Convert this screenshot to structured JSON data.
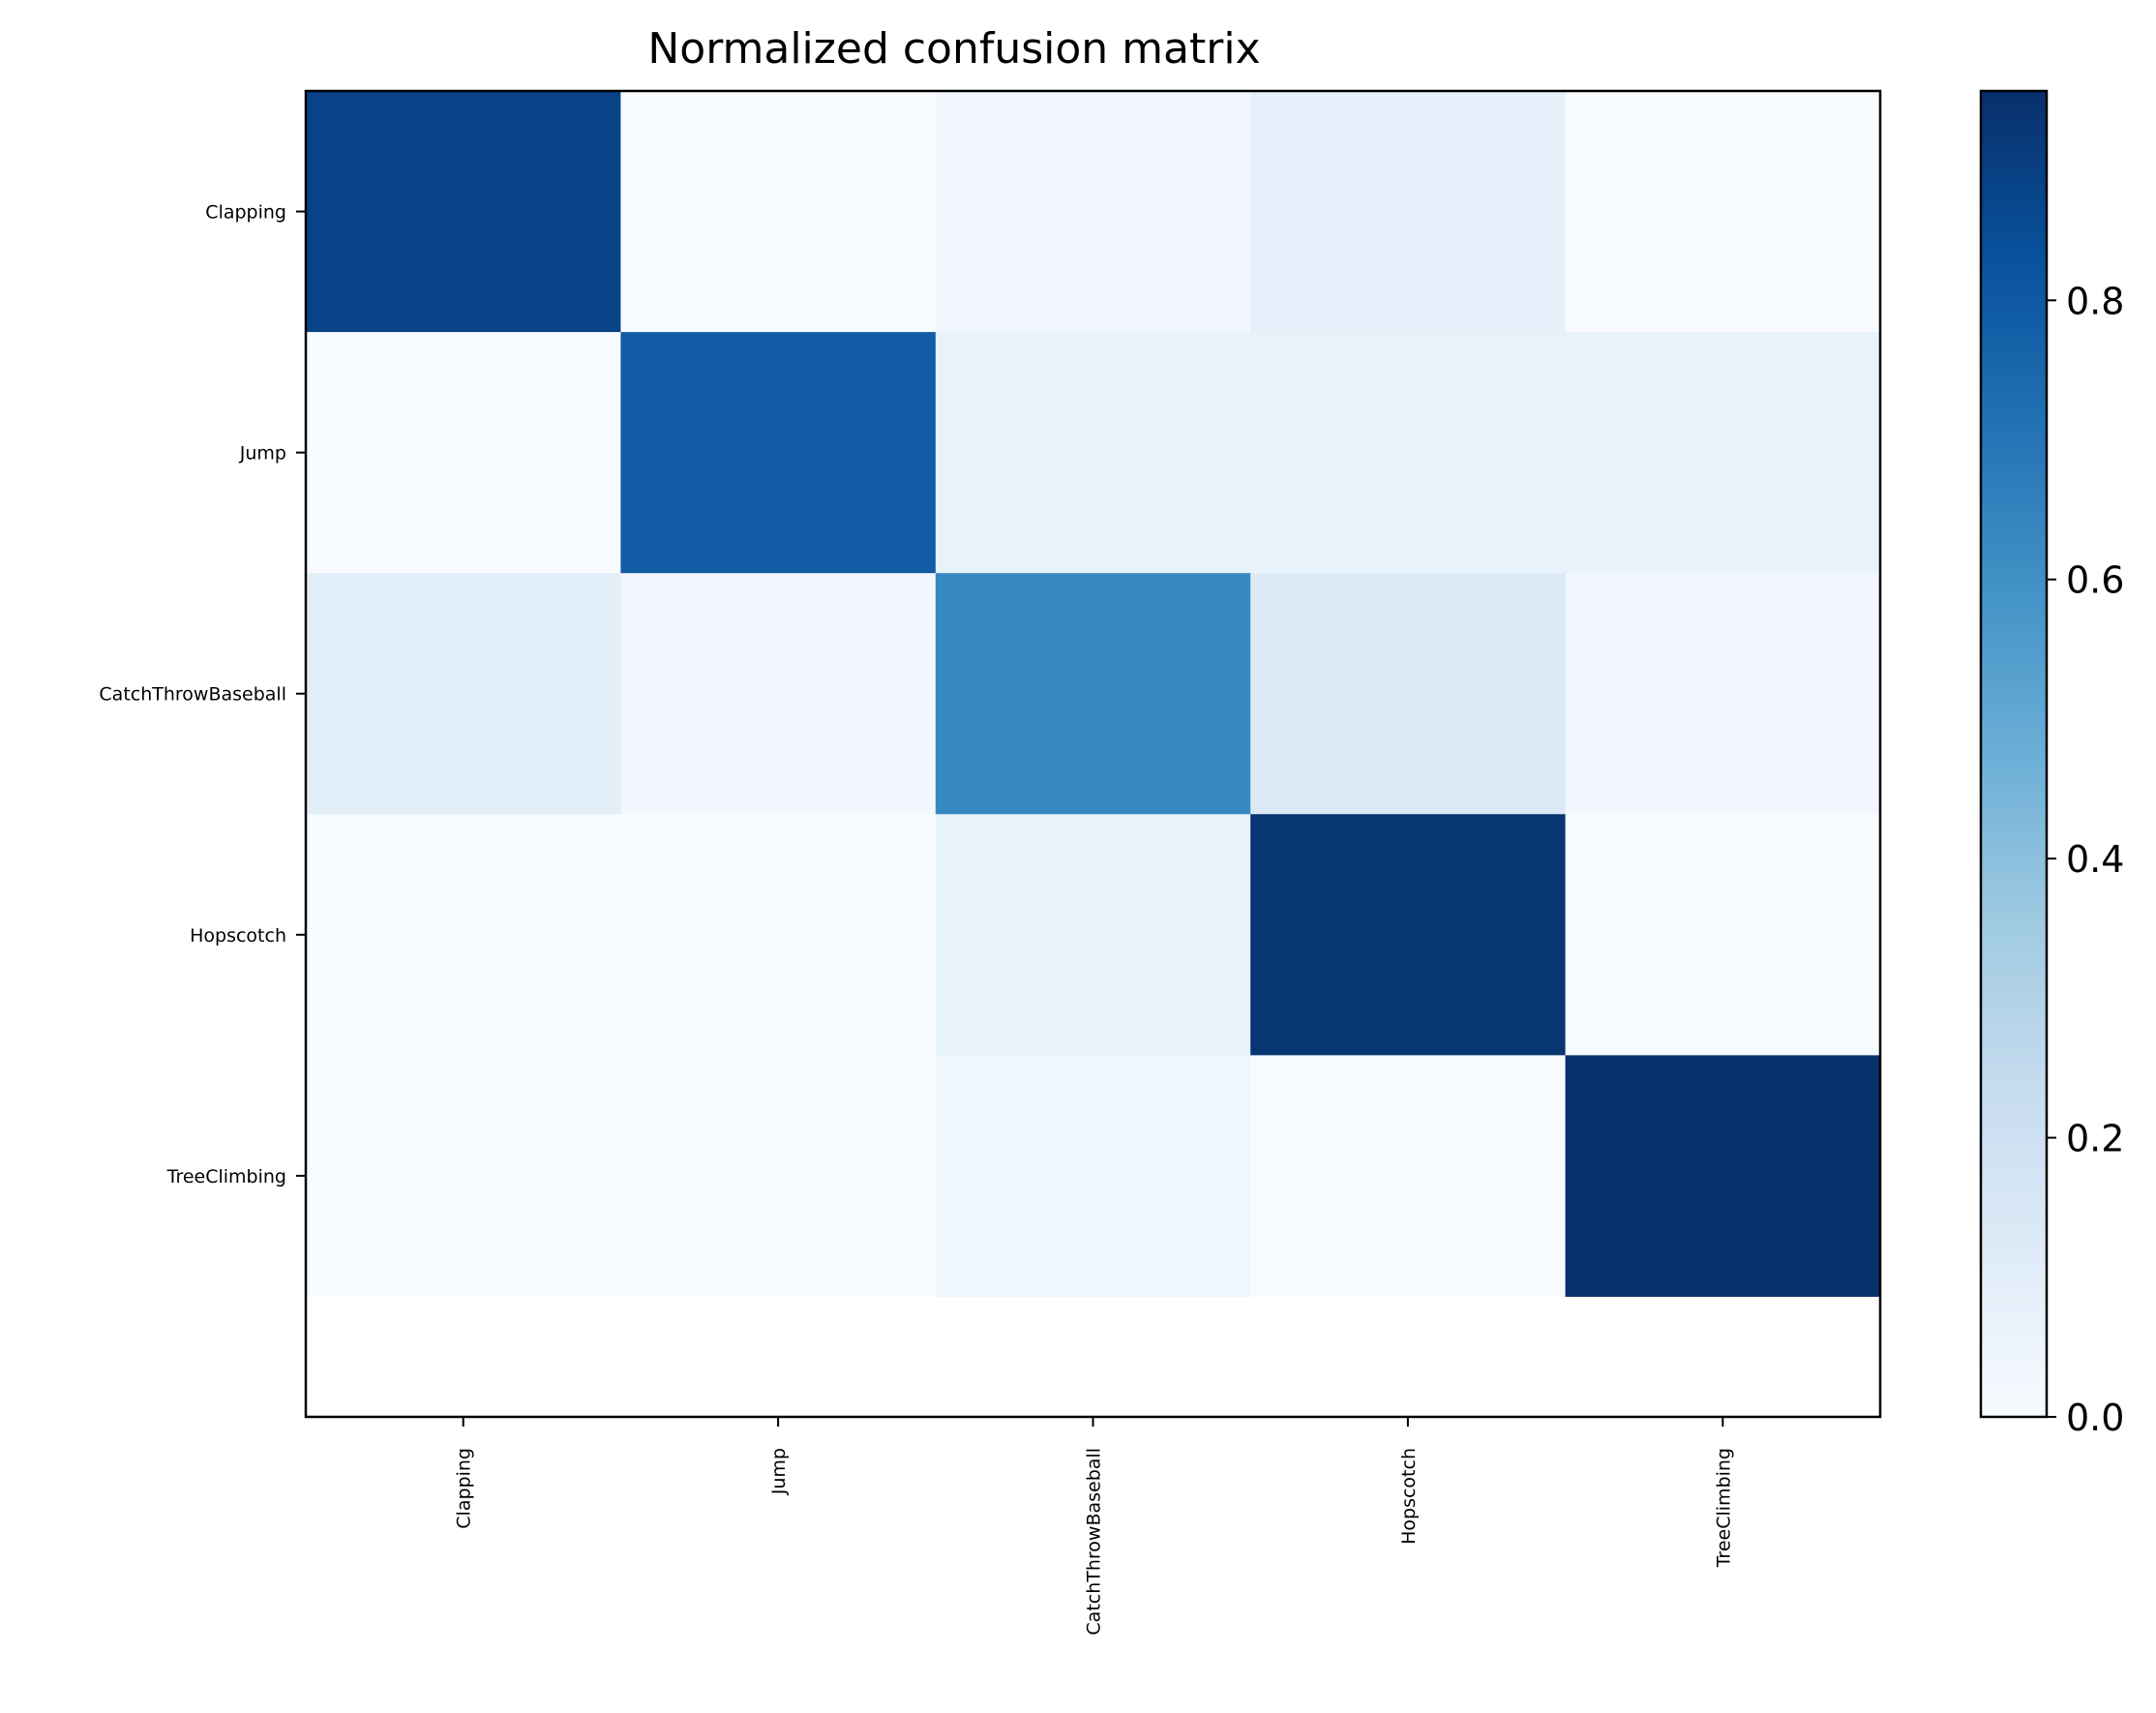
{
  "chart_data": {
    "type": "heatmap",
    "title": "Normalized confusion matrix",
    "rows": [
      "Clapping",
      "Jump",
      "CatchThrowBaseball",
      "Hopscotch",
      "TreeClimbing"
    ],
    "columns": [
      "Clapping",
      "Jump",
      "CatchThrowBaseball",
      "Hopscotch",
      "TreeClimbing"
    ],
    "values": [
      [
        0.88,
        0.0,
        0.03,
        0.08,
        0.0
      ],
      [
        0.0,
        0.79,
        0.07,
        0.07,
        0.07
      ],
      [
        0.1,
        0.03,
        0.63,
        0.13,
        0.03
      ],
      [
        0.0,
        0.0,
        0.07,
        0.93,
        0.0
      ],
      [
        0.0,
        0.0,
        0.04,
        0.0,
        0.95
      ]
    ],
    "colormap": "Blues",
    "colorbar": {
      "range": [
        0,
        0.95
      ],
      "ticks": [
        0.0,
        0.2,
        0.4,
        0.6,
        0.8
      ],
      "tick_labels": [
        "0.0",
        "0.2",
        "0.4",
        "0.6",
        "0.8"
      ]
    },
    "ylim_rows": [
      -0.5,
      5.0
    ]
  }
}
